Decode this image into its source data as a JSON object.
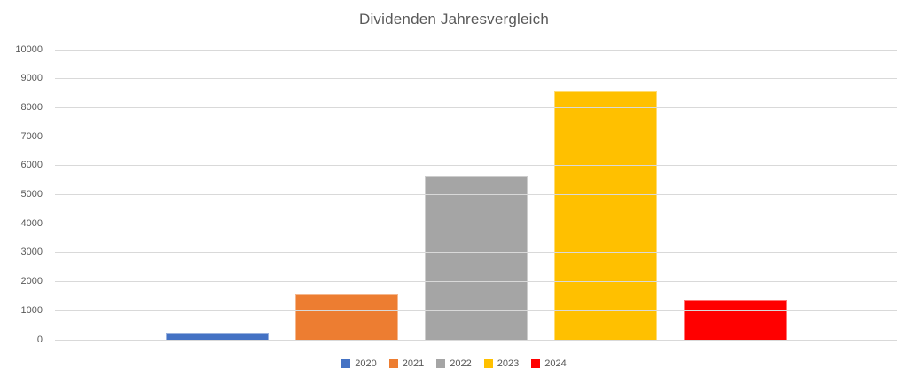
{
  "chart_data": {
    "type": "bar",
    "title": "Dividenden Jahresvergleich",
    "categories": [
      "2020",
      "2021",
      "2022",
      "2023",
      "2024"
    ],
    "values": [
      250,
      1600,
      5650,
      8550,
      1380
    ],
    "series_colors": [
      "#4472C4",
      "#ED7D31",
      "#A5A5A5",
      "#FFC000",
      "#FF0000"
    ],
    "xlabel": "",
    "ylabel": "",
    "ylim": [
      0,
      10000
    ],
    "ytick_step": 1000,
    "yticks": [
      0,
      1000,
      2000,
      3000,
      4000,
      5000,
      6000,
      7000,
      8000,
      9000,
      10000
    ],
    "grid": true,
    "legend_position": "bottom",
    "legend": [
      "2020",
      "2021",
      "2022",
      "2023",
      "2024"
    ]
  },
  "style": {
    "background": "#FFFFFF",
    "title_color": "#595959",
    "axis_label_color": "#595959",
    "legend_text_color": "#595959",
    "gridline_color": "#D9D9D9"
  }
}
